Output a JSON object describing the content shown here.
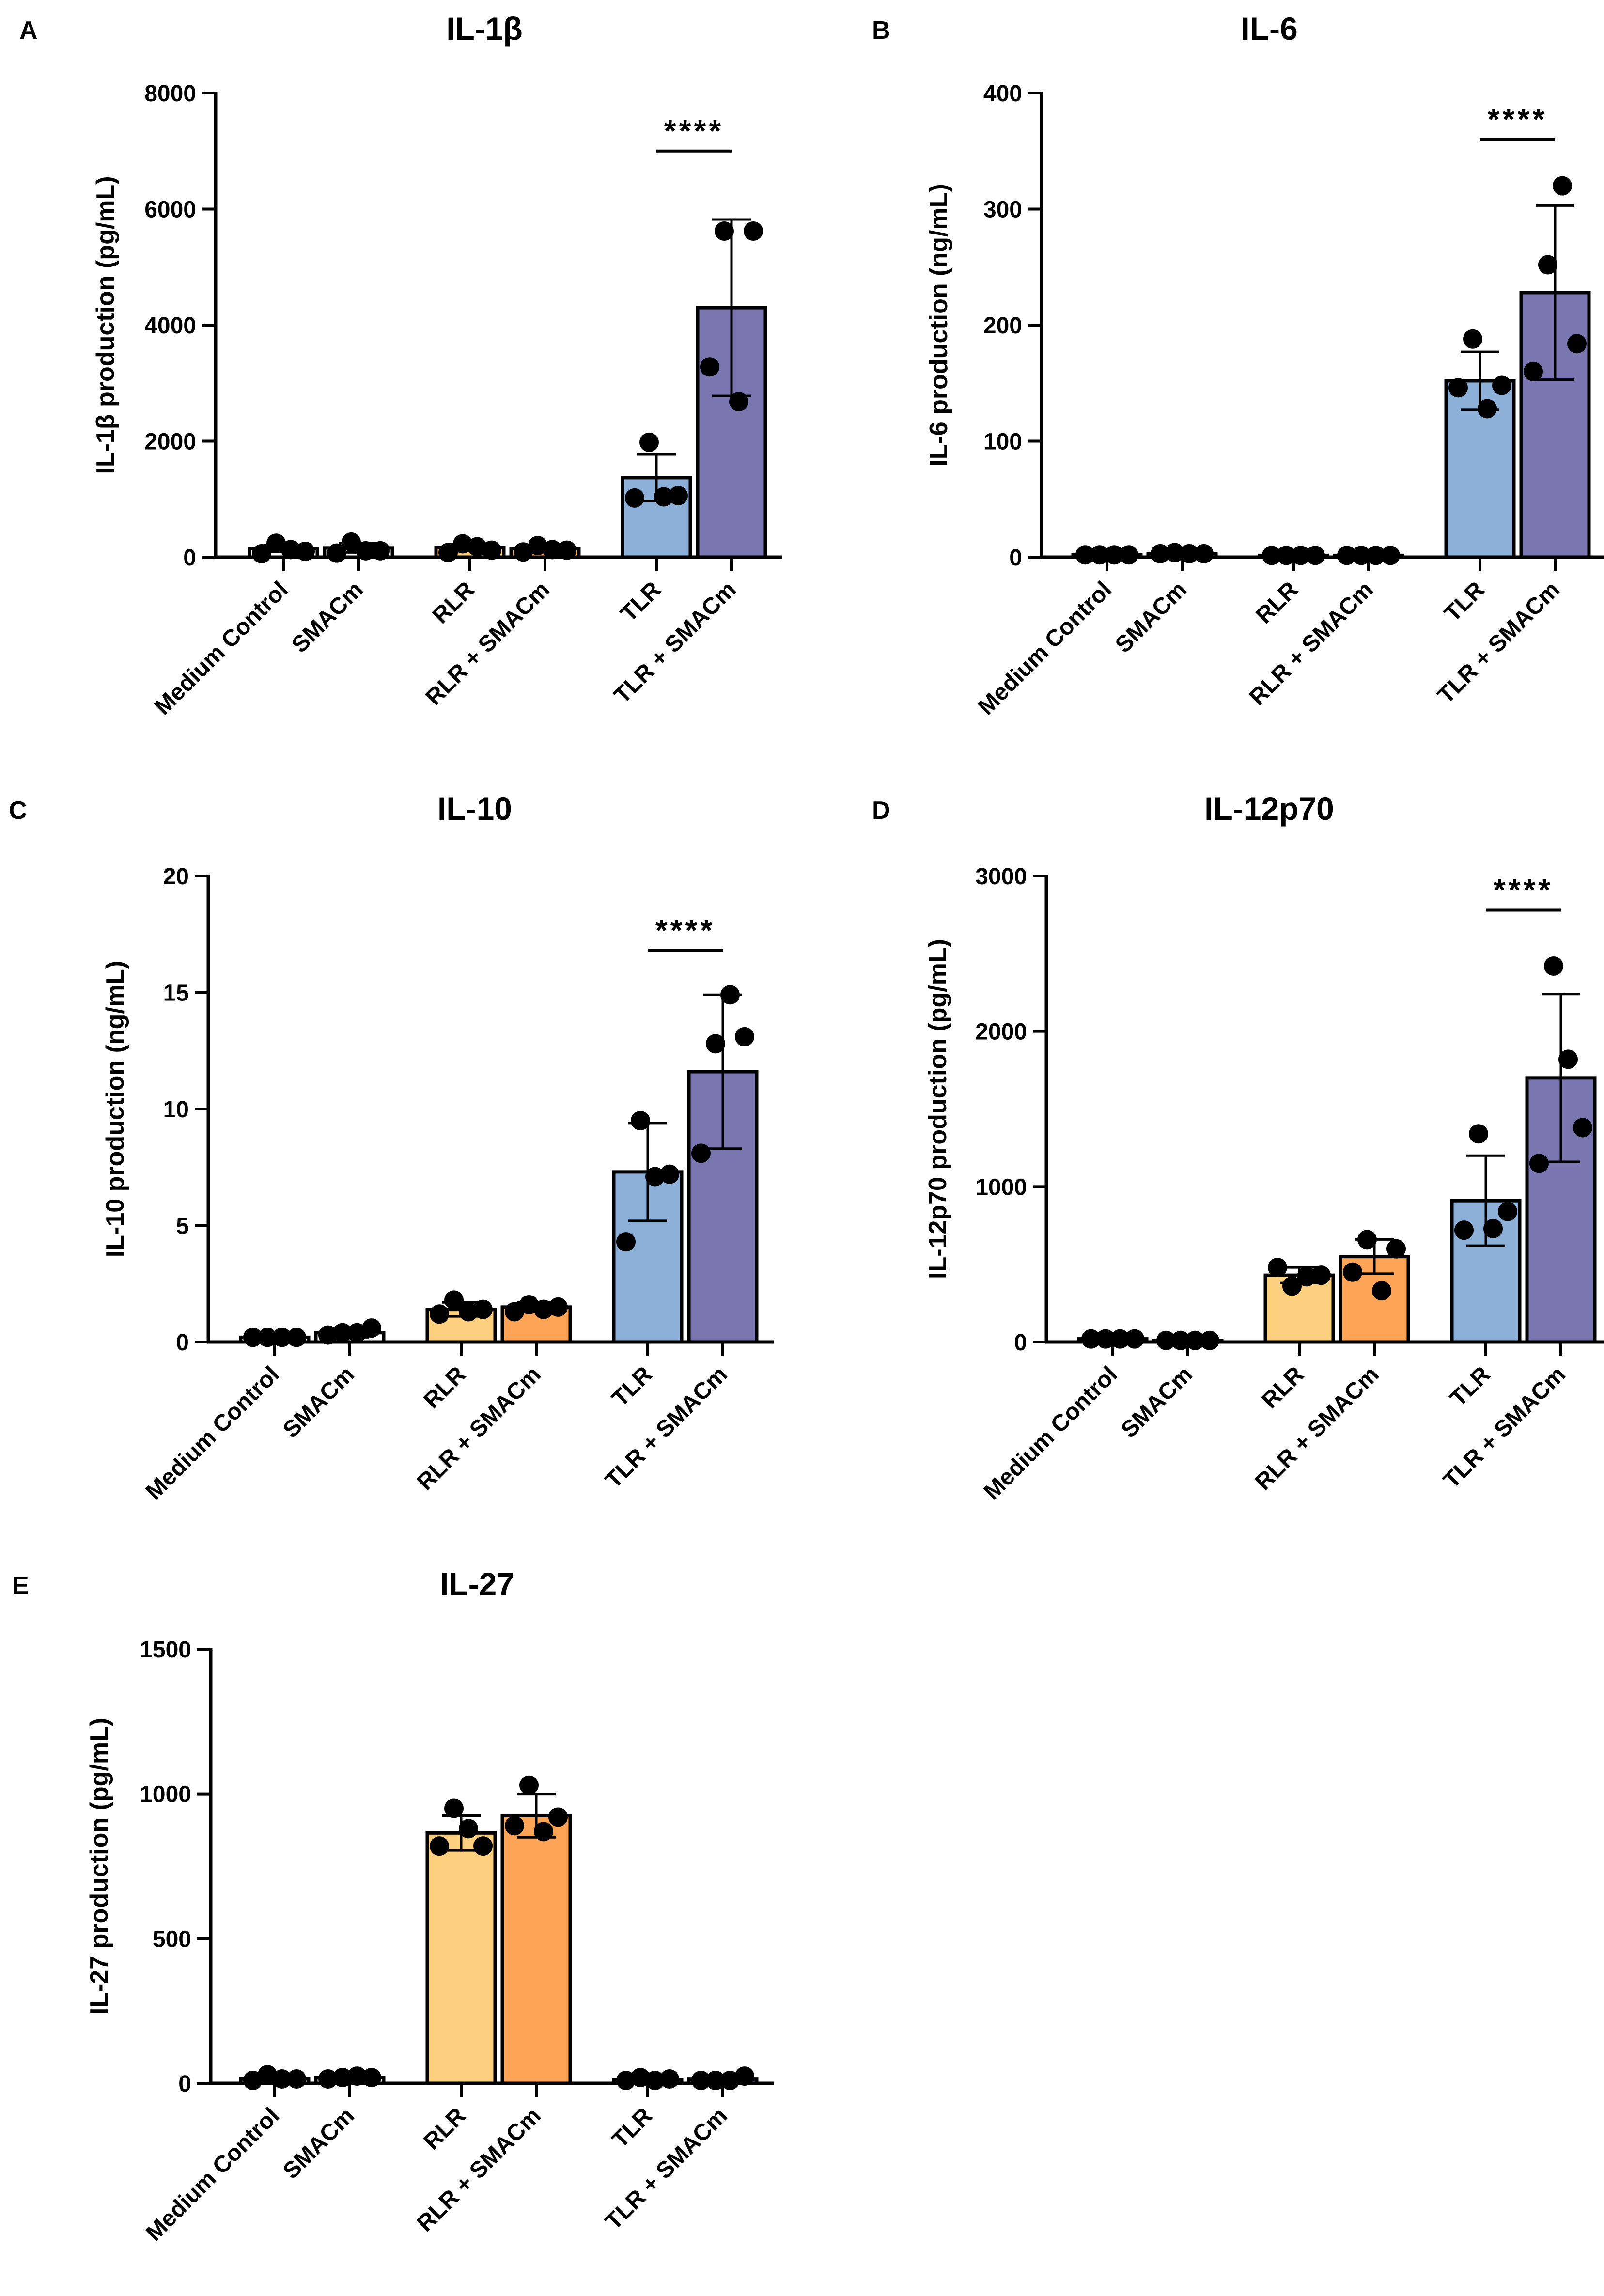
{
  "figure": {
    "categories": [
      "Medium Control",
      "SMACm",
      "RLR",
      "RLR + SMACm",
      "TLR",
      "TLR + SMACm"
    ],
    "colors": {
      "Medium Control": "#ffffff",
      "SMACm": "#ffffff",
      "RLR": "#fdd07f",
      "RLR + SMACm": "#fda456",
      "TLR": "#8db0d9",
      "TLR + SMACm": "#7a77b0",
      "axis": "#000000",
      "point": "#000000"
    }
  },
  "chart_data": [
    {
      "panel": "A",
      "type": "bar",
      "title": "IL-1β",
      "ylabel": "IL-1β production (pg/mL)",
      "ylim": [
        0,
        8000
      ],
      "yticks": [
        0,
        2000,
        4000,
        6000,
        8000
      ],
      "ytick_labels": [
        "0",
        "2000",
        "4000",
        "6000",
        "8000"
      ],
      "categories": [
        "Medium Control",
        "SMACm",
        "RLR",
        "RLR + SMACm",
        "TLR",
        "TLR + SMACm"
      ],
      "values": [
        150,
        160,
        170,
        150,
        1370,
        4300
      ],
      "sd": [
        60,
        80,
        60,
        40,
        400,
        1520
      ],
      "points": [
        [
          60,
          240,
          130,
          100
        ],
        [
          70,
          260,
          110,
          110
        ],
        [
          80,
          230,
          180,
          120
        ],
        [
          90,
          200,
          130,
          120
        ],
        [
          1020,
          1980,
          1040,
          1060
        ],
        [
          3280,
          5620,
          2680,
          5620
        ]
      ],
      "significance": [
        {
          "from": 4,
          "to": 5,
          "label": "****",
          "at": 7000
        }
      ]
    },
    {
      "panel": "B",
      "type": "bar",
      "title": "IL-6",
      "ylabel": "IL-6 production (ng/mL)",
      "ylim": [
        0,
        400
      ],
      "yticks": [
        0,
        100,
        200,
        300,
        400
      ],
      "ytick_labels": [
        "0",
        "100",
        "200",
        "300",
        "400"
      ],
      "categories": [
        "Medium Control",
        "SMACm",
        "RLR",
        "RLR + SMACm",
        "TLR",
        "TLR + SMACm"
      ],
      "values": [
        2,
        3,
        1.5,
        1.5,
        152,
        228
      ],
      "sd": [
        1,
        1.5,
        0.5,
        0.5,
        25,
        75
      ],
      "points": [
        [
          2,
          2,
          2,
          2
        ],
        [
          3,
          4,
          3,
          3
        ],
        [
          1.5,
          1.5,
          1.5,
          1.5
        ],
        [
          1.5,
          1.5,
          1.5,
          1.5
        ],
        [
          146,
          188,
          128,
          148
        ],
        [
          160,
          252,
          320,
          184
        ]
      ],
      "significance": [
        {
          "from": 4,
          "to": 5,
          "label": "****",
          "at": 360
        }
      ]
    },
    {
      "panel": "C",
      "type": "bar",
      "title": "IL-10",
      "ylabel": "IL-10 production (ng/mL)",
      "ylim": [
        0,
        20
      ],
      "yticks": [
        0,
        5,
        10,
        15,
        20
      ],
      "ytick_labels": [
        "0",
        "5",
        "10",
        "15",
        "20"
      ],
      "categories": [
        "Medium Control",
        "SMACm",
        "RLR",
        "RLR + SMACm",
        "TLR",
        "TLR + SMACm"
      ],
      "values": [
        0.2,
        0.4,
        1.4,
        1.5,
        7.3,
        11.6
      ],
      "sd": [
        0.05,
        0.2,
        0.3,
        0.2,
        2.1,
        3.3
      ],
      "points": [
        [
          0.2,
          0.2,
          0.2,
          0.2
        ],
        [
          0.3,
          0.4,
          0.4,
          0.6
        ],
        [
          1.2,
          1.8,
          1.3,
          1.4
        ],
        [
          1.3,
          1.6,
          1.4,
          1.5
        ],
        [
          4.3,
          9.5,
          7.1,
          7.2
        ],
        [
          8.1,
          12.8,
          14.9,
          13.1
        ]
      ],
      "significance": [
        {
          "from": 4,
          "to": 5,
          "label": "****",
          "at": 16.8
        }
      ]
    },
    {
      "panel": "D",
      "type": "bar",
      "title": "IL-12p70",
      "ylabel": "IL-12p70 production (pg/mL)",
      "ylim": [
        0,
        3000
      ],
      "yticks": [
        0,
        1000,
        2000,
        3000
      ],
      "ytick_labels": [
        "0",
        "1000",
        "2000",
        "3000"
      ],
      "categories": [
        "Medium Control",
        "SMACm",
        "RLR",
        "RLR + SMACm",
        "TLR",
        "TLR + SMACm"
      ],
      "values": [
        20,
        10,
        430,
        550,
        910,
        1700
      ],
      "sd": [
        5,
        5,
        50,
        110,
        290,
        540
      ],
      "points": [
        [
          20,
          20,
          20,
          20
        ],
        [
          10,
          10,
          10,
          10
        ],
        [
          480,
          360,
          420,
          430
        ],
        [
          450,
          660,
          330,
          600
        ],
        [
          720,
          1340,
          730,
          840
        ],
        [
          1150,
          2420,
          1820,
          1380
        ]
      ],
      "significance": [
        {
          "from": 4,
          "to": 5,
          "label": "****",
          "at": 2780
        }
      ]
    },
    {
      "panel": "E",
      "type": "bar",
      "title": "IL-27",
      "ylabel": "IL-27 production (pg/mL)",
      "ylim": [
        0,
        1500
      ],
      "yticks": [
        0,
        500,
        1000,
        1500
      ],
      "ytick_labels": [
        "0",
        "500",
        "1000",
        "1500"
      ],
      "categories": [
        "Medium Control",
        "SMACm",
        "RLR",
        "RLR + SMACm",
        "TLR",
        "TLR + SMACm"
      ],
      "values": [
        15,
        20,
        865,
        925,
        12,
        14
      ],
      "sd": [
        10,
        8,
        60,
        75,
        5,
        5
      ],
      "points": [
        [
          10,
          30,
          15,
          15
        ],
        [
          15,
          20,
          25,
          20
        ],
        [
          820,
          950,
          880,
          820
        ],
        [
          890,
          1030,
          870,
          920
        ],
        [
          10,
          20,
          10,
          15
        ],
        [
          10,
          10,
          10,
          25
        ]
      ],
      "significance": []
    }
  ]
}
